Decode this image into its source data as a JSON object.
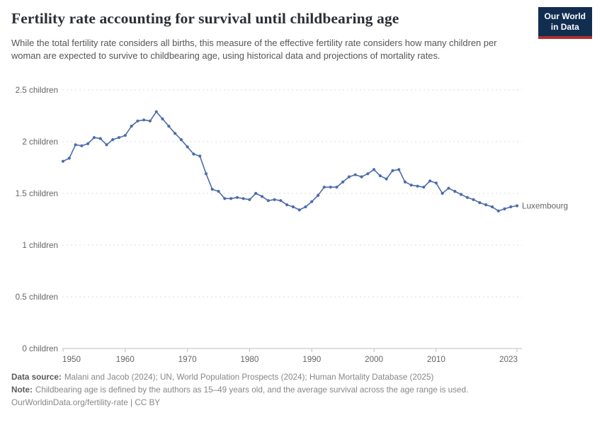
{
  "header": {
    "title": "Fertility rate accounting for survival until childbearing age",
    "subtitle": "While the total fertility rate considers all births, this measure of the effective fertility rate considers how many children per woman are expected to survive to childbearing age, using historical data and projections of mortality rates.",
    "logo": {
      "line1": "Our World",
      "line2": "in Data",
      "bg_color": "#112e51",
      "accent_color": "#b03030"
    }
  },
  "chart_data": {
    "type": "line",
    "title": "Fertility rate accounting for survival until childbearing age",
    "xlabel": "",
    "ylabel": "",
    "xlim": [
      1950,
      2023
    ],
    "ylim": [
      0,
      2.5
    ],
    "grid": "horizontal-dashed",
    "legend_position": "end-of-line-label",
    "x_ticks": [
      1950,
      1960,
      1970,
      1980,
      1990,
      2000,
      2010,
      2023
    ],
    "y_ticks": [
      {
        "value": 0,
        "label": "0 children"
      },
      {
        "value": 0.5,
        "label": "0.5 children"
      },
      {
        "value": 1,
        "label": "1 children"
      },
      {
        "value": 1.5,
        "label": "1.5 children"
      },
      {
        "value": 2,
        "label": "2 children"
      },
      {
        "value": 2.5,
        "label": "2.5 children"
      }
    ],
    "series": [
      {
        "name": "Luxembourg",
        "color": "#4c6cab",
        "years": [
          1950,
          1951,
          1952,
          1953,
          1954,
          1955,
          1956,
          1957,
          1958,
          1959,
          1960,
          1961,
          1962,
          1963,
          1964,
          1965,
          1966,
          1967,
          1968,
          1969,
          1970,
          1971,
          1972,
          1973,
          1974,
          1975,
          1976,
          1977,
          1978,
          1979,
          1980,
          1981,
          1982,
          1983,
          1984,
          1985,
          1986,
          1987,
          1988,
          1989,
          1990,
          1991,
          1992,
          1993,
          1994,
          1995,
          1996,
          1997,
          1998,
          1999,
          2000,
          2001,
          2002,
          2003,
          2004,
          2005,
          2006,
          2007,
          2008,
          2009,
          2010,
          2011,
          2012,
          2013,
          2014,
          2015,
          2016,
          2017,
          2018,
          2019,
          2020,
          2021,
          2022,
          2023
        ],
        "values": [
          1.81,
          1.84,
          1.97,
          1.96,
          1.98,
          2.04,
          2.03,
          1.97,
          2.02,
          2.04,
          2.06,
          2.15,
          2.2,
          2.21,
          2.2,
          2.29,
          2.22,
          2.15,
          2.08,
          2.02,
          1.95,
          1.88,
          1.86,
          1.69,
          1.54,
          1.52,
          1.45,
          1.45,
          1.46,
          1.45,
          1.44,
          1.5,
          1.47,
          1.43,
          1.44,
          1.43,
          1.39,
          1.37,
          1.34,
          1.37,
          1.42,
          1.48,
          1.56,
          1.56,
          1.56,
          1.61,
          1.66,
          1.68,
          1.66,
          1.69,
          1.73,
          1.67,
          1.64,
          1.72,
          1.73,
          1.61,
          1.58,
          1.57,
          1.56,
          1.62,
          1.6,
          1.5,
          1.55,
          1.52,
          1.49,
          1.46,
          1.44,
          1.41,
          1.39,
          1.37,
          1.33,
          1.35,
          1.37,
          1.38
        ]
      }
    ]
  },
  "footer": {
    "data_source_label": "Data source:",
    "data_source": "Malani and Jacob (2024); UN, World Population Prospects (2024); Human Mortality Database (2025)",
    "note_label": "Note:",
    "note": "Childbearing age is defined by the authors as 15–49 years old, and the average survival across the age range is used.",
    "url": "OurWorldinData.org/fertility-rate",
    "separator": "|",
    "license": "CC BY"
  }
}
